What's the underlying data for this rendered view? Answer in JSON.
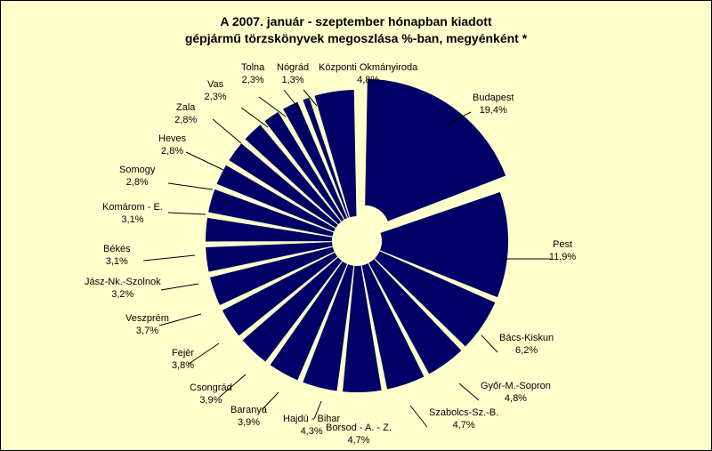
{
  "chart_data": {
    "type": "pie",
    "title": [
      "A  2007. január - szeptember hónapban kiadott",
      "gépjármű törzskönyvek megoszlása %-ban, megyénként *"
    ],
    "unit": "%",
    "colors": {
      "slice": "#000066",
      "background": "#ffffcc"
    },
    "slices": [
      {
        "label": "Budapest",
        "value": 19.4,
        "value_label": "19,4%"
      },
      {
        "label": "Pest",
        "value": 11.9,
        "value_label": "11,9%"
      },
      {
        "label": "Bács-Kiskun",
        "value": 6.2,
        "value_label": "6,2%"
      },
      {
        "label": "Győr-M.-Sopron",
        "value": 4.8,
        "value_label": "4,8%"
      },
      {
        "label": "Szabolcs-Sz.-B.",
        "value": 4.7,
        "value_label": "4,7%"
      },
      {
        "label": "Borsod - A. - Z.",
        "value": 4.7,
        "value_label": "4,7%"
      },
      {
        "label": "Hajdú - Bihar",
        "value": 4.3,
        "value_label": "4,3%"
      },
      {
        "label": "Baranya",
        "value": 3.9,
        "value_label": "3,9%"
      },
      {
        "label": "Csongrád",
        "value": 3.9,
        "value_label": "3,9%"
      },
      {
        "label": "Fejér",
        "value": 3.8,
        "value_label": "3,8%"
      },
      {
        "label": "Veszprém",
        "value": 3.7,
        "value_label": "3,7%"
      },
      {
        "label": "Jász-Nk.-Szolnok",
        "value": 3.2,
        "value_label": "3,2%"
      },
      {
        "label": "Békés",
        "value": 3.1,
        "value_label": "3,1%"
      },
      {
        "label": "Komárom - E.",
        "value": 3.1,
        "value_label": "3,1%"
      },
      {
        "label": "Somogy",
        "value": 2.8,
        "value_label": "2,8%"
      },
      {
        "label": "Heves",
        "value": 2.8,
        "value_label": "2,8%"
      },
      {
        "label": "Zala",
        "value": 2.8,
        "value_label": "2,8%"
      },
      {
        "label": "Vas",
        "value": 2.3,
        "value_label": "2,3%"
      },
      {
        "label": "Tolna",
        "value": 2.3,
        "value_label": "2,3%"
      },
      {
        "label": "Nógrád",
        "value": 1.3,
        "value_label": "1,3%"
      },
      {
        "label": "Központi Okmányiroda",
        "value": 4.8,
        "value_label": "4,8%"
      }
    ]
  }
}
